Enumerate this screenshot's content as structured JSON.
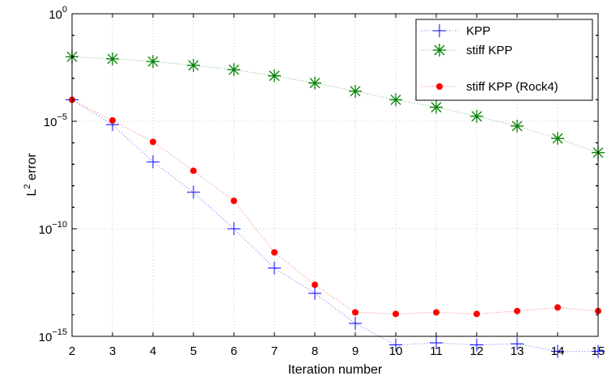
{
  "chart_data": {
    "type": "line",
    "title": "",
    "xlabel": "Iteration number",
    "ylabel": {
      "base": "L",
      "sup": "2",
      "rest": " error"
    },
    "scale": {
      "y": "log"
    },
    "xlim": [
      2,
      15
    ],
    "ylim": [
      1e-15,
      1
    ],
    "grid": true,
    "legend_position": "top-right",
    "x_ticks": [
      "2",
      "3",
      "4",
      "5",
      "6",
      "7",
      "8",
      "9",
      "10",
      "11",
      "12",
      "13",
      "14",
      "15"
    ],
    "y_ticks": [
      {
        "base": "10",
        "exp": "0",
        "value": 1
      },
      {
        "base": "10",
        "exp": "−5",
        "value": 1e-05
      },
      {
        "base": "10",
        "exp": "−10",
        "value": 1e-10
      },
      {
        "base": "10",
        "exp": "−15",
        "value": 1e-15
      }
    ],
    "x": [
      2,
      3,
      4,
      5,
      6,
      7,
      8,
      9,
      10,
      11,
      12,
      13,
      14,
      15
    ],
    "series": [
      {
        "name": "KPP",
        "marker": "plus",
        "color": "#0000ff",
        "values": [
          0.0001,
          7e-06,
          1.3e-07,
          5e-09,
          1e-10,
          1.5e-12,
          1e-13,
          4e-15,
          4e-16,
          5e-16,
          4e-16,
          4.5e-16,
          2e-16,
          2e-16
        ]
      },
      {
        "name": "stiff KPP",
        "marker": "star",
        "color": "#008000",
        "values": [
          0.01,
          0.008,
          0.006,
          0.004,
          0.0025,
          0.0013,
          0.0006,
          0.00025,
          0.0001,
          4.5e-05,
          1.7e-05,
          6e-06,
          1.6e-06,
          3.5e-07
        ]
      },
      {
        "name": "stiff KPP (Rock4)",
        "marker": "dot",
        "color": "#ff0000",
        "values": [
          0.0001,
          1.1e-05,
          1.1e-06,
          5e-08,
          2e-09,
          8e-12,
          2.5e-13,
          1.3e-14,
          1.1e-14,
          1.3e-14,
          1.1e-14,
          1.5e-14,
          2.2e-14,
          1.5e-14
        ]
      }
    ]
  }
}
